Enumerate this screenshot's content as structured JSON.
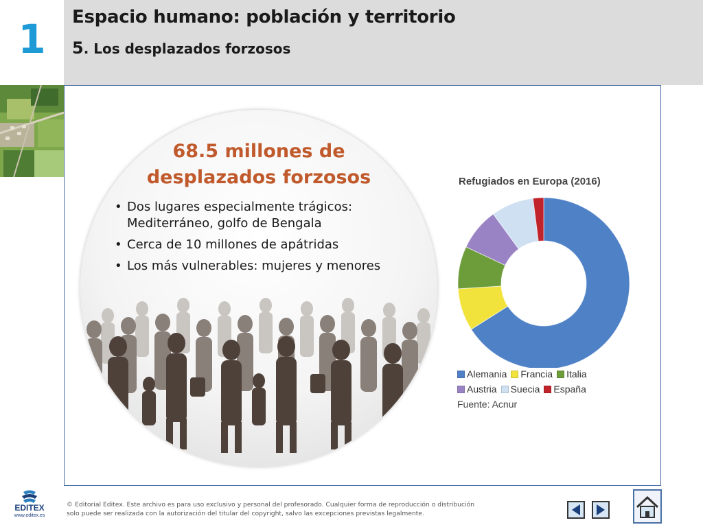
{
  "chapter_number": "1",
  "header": {
    "title": "Espacio humano: población y territorio",
    "subtitle_number": "5",
    "subtitle": ". Los desplazados forzosos"
  },
  "main": {
    "headline": [
      "68.5 millones de",
      "desplazados forzosos"
    ],
    "bullets": [
      "Dos lugares especialmente trágicos: Mediterráneo, golfo de Bengala",
      "Cerca de 10 millones de apátridas",
      "Los más vulnerables: mujeres y menores"
    ]
  },
  "chart_data": {
    "type": "pie",
    "title": "Refugiados en Europa (2016)",
    "categories": [
      "Alemania",
      "Francia",
      "Italia",
      "Austria",
      "Suecia",
      "España"
    ],
    "values": [
      66,
      8,
      8,
      8,
      8,
      2
    ],
    "colors": [
      "#4f81c7",
      "#f2e23c",
      "#6d9c3a",
      "#9a83c4",
      "#cfe0f3",
      "#c0232a"
    ],
    "legend_placement": "bottom",
    "source": "Fuente: Acnur"
  },
  "footer": {
    "logo_text": "EDITEX",
    "logo_url": "www.editex.es",
    "copyright_line1": "© Editorial Editex. Este archivo es para uso exclusivo y personal del profesorado. Cualquier forma de reproducción o distribución",
    "copyright_line2": "solo puede ser realizada con la autorización del titular del copyright, salvo las excepciones previstas legalmente."
  },
  "icons": {
    "prev": "arrow-left-icon",
    "next": "arrow-right-icon",
    "home": "home-icon"
  }
}
